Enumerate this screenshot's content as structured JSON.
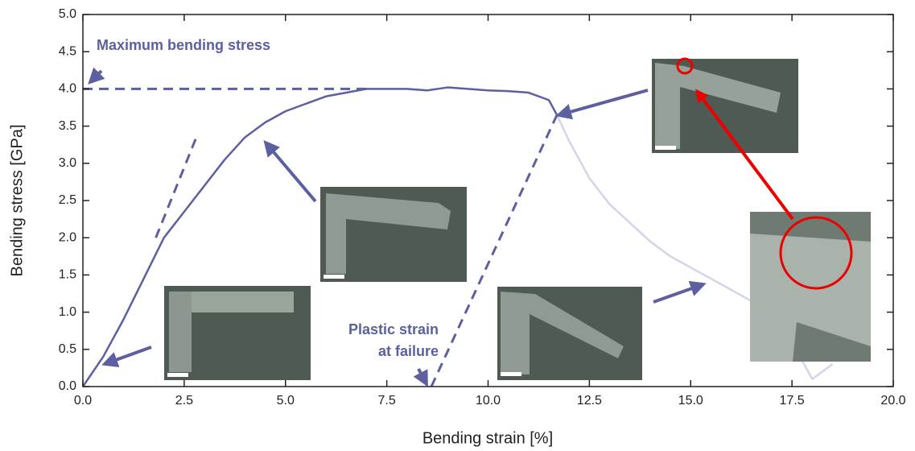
{
  "chart_data": {
    "type": "line",
    "xlabel": "Bending strain [%]",
    "ylabel": "Bending stress [GPa]",
    "annotations": [
      "Maximum bending stress",
      "Plastic strain",
      "at failure"
    ],
    "xlim": [
      0,
      20
    ],
    "ylim": [
      0,
      5
    ],
    "xticks": [
      {
        "value": 0,
        "label": "0.0"
      },
      2.5,
      {
        "value": 5,
        "label": "5.0"
      },
      7.5,
      {
        "value": 10,
        "label": "10.0"
      },
      12.5,
      {
        "value": 15,
        "label": "15.0"
      },
      17.5,
      {
        "value": 20,
        "label": "20.0"
      }
    ],
    "yticks": [
      {
        "value": 0,
        "label": "0.0"
      },
      0.5,
      {
        "value": 1,
        "label": "1.0"
      },
      1.5,
      {
        "value": 2,
        "label": "2.0"
      },
      2.5,
      {
        "value": 3,
        "label": "3.0"
      },
      3.5,
      {
        "value": 4,
        "label": "4.0"
      },
      4.5,
      {
        "value": 5,
        "label": "5.0"
      }
    ],
    "series": [
      {
        "color": "#5c5fa0",
        "dash": false,
        "x": [
          0,
          0.5,
          1,
          1.5,
          2,
          2.5,
          3,
          3.5,
          4,
          4.5,
          5,
          5.5,
          6,
          6.5,
          7,
          7.5,
          8,
          8.5,
          9,
          9.5,
          10,
          10.5,
          11,
          11.5,
          11.7
        ],
        "values": [
          0,
          0.4,
          0.9,
          1.45,
          2.0,
          2.35,
          2.7,
          3.05,
          3.35,
          3.55,
          3.7,
          3.8,
          3.9,
          3.95,
          4.0,
          4.0,
          4.0,
          3.98,
          4.02,
          4.0,
          3.98,
          3.97,
          3.95,
          3.85,
          3.65
        ]
      },
      {
        "color": "#d4d4e8",
        "dash": false,
        "x": [
          11.7,
          12,
          12.5,
          13,
          13.5,
          14,
          14.5,
          15,
          15.5,
          16,
          16.5,
          17,
          17.5,
          18,
          18.5
        ],
        "values": [
          3.65,
          3.3,
          2.8,
          2.45,
          2.2,
          1.95,
          1.75,
          1.6,
          1.45,
          1.3,
          1.15,
          1.0,
          0.6,
          0.1,
          0.3
        ]
      },
      {
        "color": "#5c5fa0",
        "dash": true,
        "x": [
          0,
          7
        ],
        "values": [
          4.0,
          4.0
        ]
      },
      {
        "color": "#5c5fa0",
        "dash": true,
        "x": [
          1.8,
          2.8
        ],
        "values": [
          2.0,
          3.35
        ]
      },
      {
        "color": "#5c5fa0",
        "dash": true,
        "x": [
          8.6,
          11.7
        ],
        "values": [
          0,
          3.65
        ]
      }
    ]
  }
}
